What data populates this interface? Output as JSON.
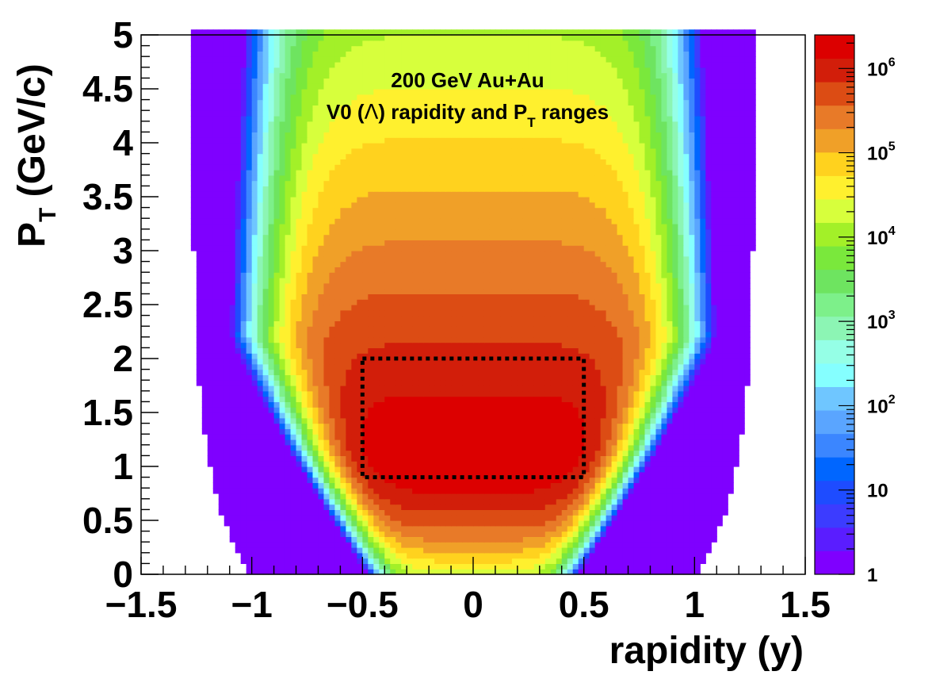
{
  "chart_data": {
    "type": "heatmap",
    "annotation": {
      "line1": "200 GeV Au+Au",
      "line2_prefix": "V0 (",
      "line2_symbol": "Λ",
      "line2_mid": ") rapidity and P",
      "line2_sub": "T",
      "line2_suffix": " ranges"
    },
    "xlabel": "rapidity (y)",
    "ylabel_main": "P",
    "ylabel_sub": "T",
    "ylabel_unit": " (GeV/c)",
    "xlim": [
      -1.5,
      1.5
    ],
    "ylim": [
      0,
      5
    ],
    "x_ticks": [
      {
        "value": -1.5,
        "label": "−1.5"
      },
      {
        "value": -1,
        "label": "−1"
      },
      {
        "value": -0.5,
        "label": "−0.5"
      },
      {
        "value": 0,
        "label": "0"
      },
      {
        "value": 0.5,
        "label": "0.5"
      },
      {
        "value": 1,
        "label": "1"
      },
      {
        "value": 1.5,
        "label": "1.5"
      }
    ],
    "y_ticks": [
      {
        "value": 0,
        "label": "0"
      },
      {
        "value": 0.5,
        "label": "0.5"
      },
      {
        "value": 1,
        "label": "1"
      },
      {
        "value": 1.5,
        "label": "1.5"
      },
      {
        "value": 2,
        "label": "2"
      },
      {
        "value": 2.5,
        "label": "2.5"
      },
      {
        "value": 3,
        "label": "3"
      },
      {
        "value": 3.5,
        "label": "3.5"
      },
      {
        "value": 4,
        "label": "4"
      },
      {
        "value": 4.5,
        "label": "4.5"
      },
      {
        "value": 5,
        "label": "5"
      }
    ],
    "z_scale": "log",
    "z_range": [
      1,
      2500000
    ],
    "z_ticks": [
      {
        "value": 1,
        "base": "1",
        "exp": ""
      },
      {
        "value": 10,
        "base": "10",
        "exp": ""
      },
      {
        "value": 100,
        "base": "10",
        "exp": "2"
      },
      {
        "value": 1000,
        "base": "10",
        "exp": "3"
      },
      {
        "value": 10000,
        "base": "10",
        "exp": "4"
      },
      {
        "value": 100000,
        "base": "10",
        "exp": "5"
      },
      {
        "value": 1000000,
        "base": "10",
        "exp": "6"
      }
    ],
    "palette": [
      "#7f00ff",
      "#5a1dff",
      "#3c3cff",
      "#1e4cff",
      "#0066ff",
      "#3b86ff",
      "#5aa5ff",
      "#6fc6ff",
      "#85ffff",
      "#95ffe6",
      "#8cf5b4",
      "#7df08a",
      "#6ee460",
      "#7ae83c",
      "#a3f028",
      "#d7ff3c",
      "#fff02e",
      "#ffd21e",
      "#f0a028",
      "#e87a28",
      "#dc4c14",
      "#d21e0a",
      "#dc0000"
    ],
    "roi_box": {
      "y_range": [
        -0.5,
        0.5
      ],
      "pt_range": [
        0.9,
        2.0
      ],
      "style": "dotted"
    },
    "grid": false
  }
}
